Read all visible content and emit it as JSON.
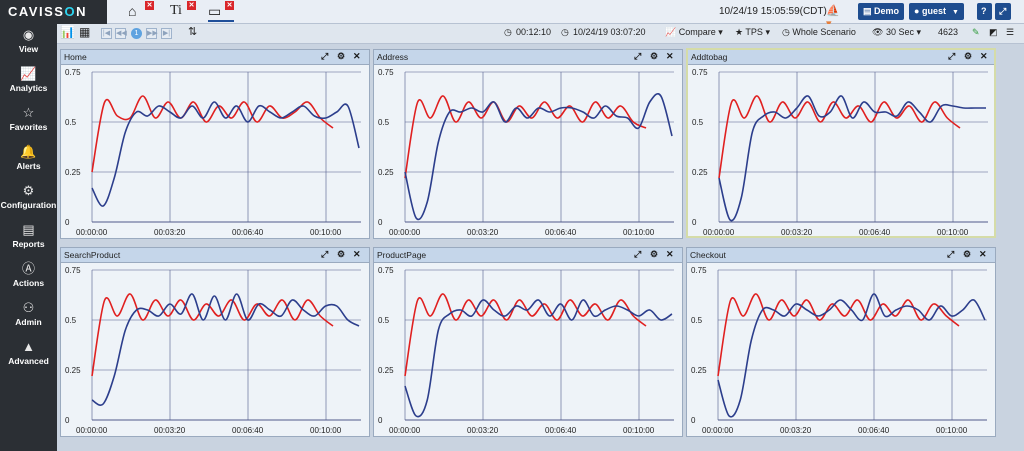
{
  "header": {
    "logo_main": "CAVISS",
    "logo_o": "O",
    "logo_n": "N",
    "tabs": [
      {
        "icon": "home-icon",
        "glyph": "⌂"
      },
      {
        "icon": "text-tool-icon",
        "glyph": "Ti"
      },
      {
        "icon": "monitor-icon",
        "glyph": "▭"
      }
    ],
    "datetime": "10/24/19 15:05:59(CDT)",
    "demo_label": "Demo",
    "guest_label": "guest",
    "help_label": "?",
    "expand_label": "⤢"
  },
  "toolbar": {
    "page_number": "1",
    "duration": "00:12:10",
    "end_time": "10/24/19 03:07:20",
    "compare_label": "Compare",
    "tps_label": "TPS",
    "scenario_label": "Whole Scenario",
    "interval_label": "30 Sec",
    "count": "4623"
  },
  "sidebar": {
    "items": [
      {
        "label": "View",
        "icon": "eye-icon",
        "glyph": "◉"
      },
      {
        "label": "Analytics",
        "icon": "line-chart-icon",
        "glyph": "📈"
      },
      {
        "label": "Favorites",
        "icon": "star-icon",
        "glyph": "☆"
      },
      {
        "label": "Alerts",
        "icon": "bell-icon",
        "glyph": "🔔"
      },
      {
        "label": "Configuration",
        "icon": "gears-icon",
        "glyph": "⚙"
      },
      {
        "label": "Reports",
        "icon": "document-icon",
        "glyph": "▤"
      },
      {
        "label": "Actions",
        "icon": "actions-icon",
        "glyph": "Ⓐ"
      },
      {
        "label": "Admin",
        "icon": "user-icon",
        "glyph": "⚇"
      },
      {
        "label": "Advanced",
        "icon": "advanced-icon",
        "glyph": "▲"
      }
    ]
  },
  "panels": [
    {
      "title": "Home"
    },
    {
      "title": "Address"
    },
    {
      "title": "Addtobag"
    },
    {
      "title": "SearchProduct"
    },
    {
      "title": "ProductPage"
    },
    {
      "title": "Checkout"
    }
  ],
  "chart_data": {
    "type": "line",
    "y_ticks": [
      "0.75",
      "0.5",
      "0.25",
      "0"
    ],
    "x_ticks": [
      "00:00:00",
      "00:03:20",
      "00:06:40",
      "00:10:00"
    ],
    "ylim": [
      0,
      0.75
    ],
    "grid": true,
    "series_colors": {
      "blue": "#2c3e8c",
      "red": "#e02020"
    },
    "charts": [
      {
        "name": "Home",
        "blue": [
          0.17,
          0.08,
          0.22,
          0.45,
          0.55,
          0.53,
          0.58,
          0.55,
          0.52,
          0.58,
          0.52,
          0.6,
          0.52,
          0.58,
          0.5,
          0.58,
          0.55,
          0.52,
          0.55,
          0.58,
          0.53,
          0.52,
          0.55,
          0.58,
          0.37
        ],
        "red": [
          0.25,
          0.6,
          0.53,
          0.52,
          0.63,
          0.52,
          0.6,
          0.52,
          0.6,
          0.5,
          0.58,
          0.52,
          0.6,
          0.5,
          0.58,
          0.52,
          0.55,
          0.6,
          0.52,
          0.47
        ]
      },
      {
        "name": "Address",
        "blue": [
          0.25,
          0.02,
          0.1,
          0.4,
          0.55,
          0.55,
          0.57,
          0.55,
          0.6,
          0.5,
          0.57,
          0.52,
          0.57,
          0.55,
          0.57,
          0.57,
          0.55,
          0.52,
          0.58,
          0.53,
          0.52,
          0.47,
          0.6,
          0.63,
          0.43
        ],
        "red": [
          0.22,
          0.6,
          0.52,
          0.63,
          0.5,
          0.6,
          0.52,
          0.6,
          0.5,
          0.58,
          0.52,
          0.6,
          0.52,
          0.58,
          0.5,
          0.6,
          0.52,
          0.58,
          0.5,
          0.47
        ]
      },
      {
        "name": "Addtobag",
        "blue": [
          0.22,
          0.01,
          0.12,
          0.45,
          0.53,
          0.55,
          0.52,
          0.57,
          0.63,
          0.53,
          0.55,
          0.63,
          0.52,
          0.6,
          0.55,
          0.55,
          0.53,
          0.6,
          0.55,
          0.5,
          0.58,
          0.58,
          0.57,
          0.57,
          0.57
        ],
        "red": [
          0.22,
          0.6,
          0.52,
          0.63,
          0.5,
          0.6,
          0.52,
          0.6,
          0.5,
          0.6,
          0.52,
          0.58,
          0.5,
          0.6,
          0.52,
          0.58,
          0.5,
          0.6,
          0.52,
          0.47
        ]
      },
      {
        "name": "SearchProduct",
        "blue": [
          0.1,
          0.08,
          0.22,
          0.45,
          0.55,
          0.55,
          0.52,
          0.58,
          0.53,
          0.63,
          0.5,
          0.62,
          0.5,
          0.63,
          0.5,
          0.58,
          0.55,
          0.52,
          0.6,
          0.55,
          0.52,
          0.57,
          0.57,
          0.5,
          0.47
        ],
        "red": [
          0.22,
          0.6,
          0.52,
          0.63,
          0.5,
          0.6,
          0.52,
          0.6,
          0.5,
          0.58,
          0.52,
          0.6,
          0.5,
          0.58,
          0.52,
          0.6,
          0.5,
          0.6,
          0.52,
          0.47
        ]
      },
      {
        "name": "ProductPage",
        "blue": [
          0.17,
          0.02,
          0.1,
          0.45,
          0.53,
          0.55,
          0.52,
          0.6,
          0.55,
          0.52,
          0.57,
          0.55,
          0.6,
          0.52,
          0.58,
          0.5,
          0.6,
          0.52,
          0.55,
          0.57,
          0.55,
          0.52,
          0.55,
          0.5,
          0.53
        ],
        "red": [
          0.22,
          0.6,
          0.52,
          0.63,
          0.5,
          0.6,
          0.52,
          0.6,
          0.5,
          0.6,
          0.52,
          0.58,
          0.5,
          0.6,
          0.52,
          0.58,
          0.5,
          0.6,
          0.52,
          0.47
        ]
      },
      {
        "name": "Checkout",
        "blue": [
          0.2,
          0.02,
          0.1,
          0.4,
          0.55,
          0.55,
          0.52,
          0.58,
          0.55,
          0.52,
          0.55,
          0.6,
          0.55,
          0.5,
          0.63,
          0.52,
          0.55,
          0.57,
          0.55,
          0.5,
          0.57,
          0.52,
          0.55,
          0.6,
          0.5
        ],
        "red": [
          0.22,
          0.6,
          0.52,
          0.63,
          0.5,
          0.6,
          0.52,
          0.6,
          0.5,
          0.58,
          0.52,
          0.6,
          0.5,
          0.58,
          0.52,
          0.6,
          0.5,
          0.58,
          0.52,
          0.47
        ]
      }
    ]
  }
}
